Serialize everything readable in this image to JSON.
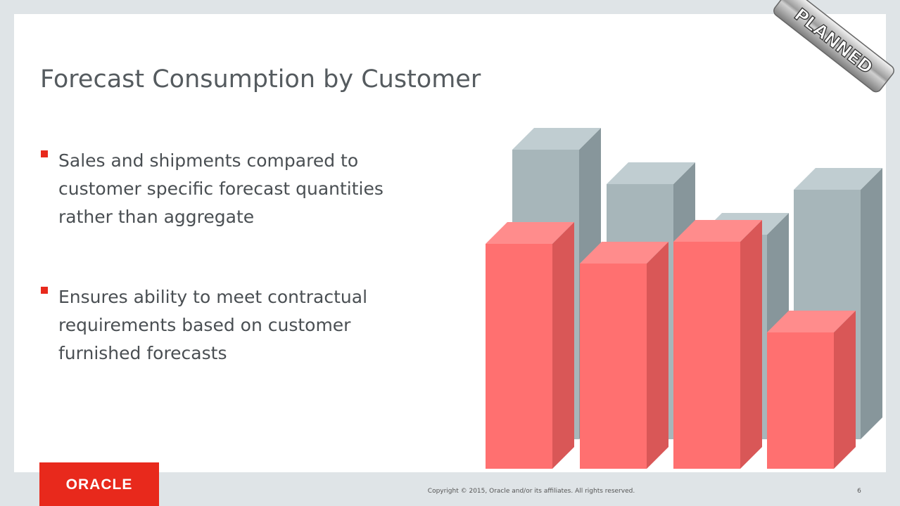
{
  "header": {
    "title": "Forecast Consumption by Customer"
  },
  "bullets": [
    {
      "lines": [
        "Sales and shipments compared to",
        "customer specific forecast quantities",
        "rather than aggregate"
      ]
    },
    {
      "lines": [
        "Ensures ability to meet contractual",
        "requirements based on customer",
        "furnished forecasts"
      ]
    }
  ],
  "stamp": "PLANNED",
  "footer": {
    "logo": "ORACLE",
    "copyright": "Copyright © 2015, Oracle and/or its affiliates. All rights reserved.",
    "page": "6"
  }
}
